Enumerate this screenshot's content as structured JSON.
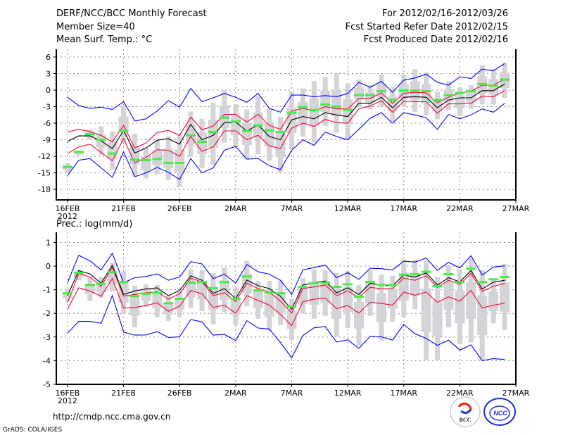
{
  "header": {
    "title": "DERF/NCC/BCC Monthly Forecast",
    "member_size": "Member Size=40",
    "variable": "Mean Surf. Temp.: °C",
    "period": "For 2012/02/16-2012/03/26",
    "started": "Fcst Started Refer Date 2012/02/15",
    "produced": "Fcst Produced Date 2012/02/16"
  },
  "footer": {
    "url": "http://cmdp.ncc.cma.gov.cn",
    "credit": "GrADS: COLA/IGES",
    "logo_bcc": "BCC",
    "logo_ncc": "NCC"
  },
  "colors": {
    "envelope": "#0000ff",
    "spread": "#ff0033",
    "mean": "#000000",
    "obs": "#44ee44",
    "range": "#d3d3d8",
    "grid": "#888888"
  },
  "chart_data": [
    {
      "type": "line",
      "title": "Mean Surf. Temp.: °C",
      "ylabel": "",
      "ylim": [
        -19.9,
        7.4
      ],
      "yticks": [
        6,
        3,
        0,
        -3,
        -6,
        -9,
        -12,
        -15,
        -18
      ],
      "ytick_labels": [
        "6",
        "3",
        "0",
        "-3",
        "-6",
        "-9",
        "-12",
        "-15",
        "-18"
      ],
      "xticks": [
        0,
        5,
        10,
        15,
        20,
        25,
        30,
        35,
        40
      ],
      "xtick_labels": [
        "16FEB",
        "21FEB",
        "26FEB",
        "2MAR",
        "7MAR",
        "12MAR",
        "17MAR",
        "22MAR",
        "27MAR"
      ],
      "xtick_sublabel": "2012",
      "xlim": [
        -1,
        40
      ],
      "grid": true,
      "series": [
        {
          "name": "max",
          "role": "envelope",
          "values": [
            -1.3,
            -2.8,
            -3.3,
            -3.1,
            -3.5,
            -2.1,
            -5.6,
            -5.2,
            -3.8,
            -1.9,
            -3.1,
            0.3,
            -2.1,
            -1.4,
            -0.6,
            -1.3,
            -2.2,
            -0.6,
            -3.3,
            -4.0,
            -0.9,
            -0.9,
            -1.2,
            -1.0,
            -1.2,
            -0.6,
            1.4,
            0.5,
            1.6,
            -0.4,
            1.8,
            2.2,
            2.9,
            1.4,
            0.9,
            2.4,
            2.1,
            3.8,
            3.5,
            4.8
          ]
        },
        {
          "name": "upper",
          "role": "spread",
          "values": [
            -7.6,
            -7.1,
            -7.5,
            -8.2,
            -9.4,
            -6.4,
            -10.5,
            -9.6,
            -7.7,
            -7.3,
            -8.2,
            -4.9,
            -7.2,
            -6.5,
            -4.4,
            -4.4,
            -5.8,
            -4.4,
            -6.4,
            -7.1,
            -3.8,
            -3.3,
            -3.8,
            -3.0,
            -3.4,
            -3.4,
            -1.5,
            -1.5,
            -0.5,
            -2.4,
            -0.6,
            -0.4,
            -0.5,
            -2.3,
            -1.3,
            -0.5,
            -0.2,
            0.9,
            0.9,
            2.0
          ]
        },
        {
          "name": "mean",
          "role": "mean",
          "values": [
            -9.3,
            -8.3,
            -8.3,
            -9.2,
            -10.6,
            -7.3,
            -11.4,
            -10.5,
            -9.1,
            -8.8,
            -9.8,
            -6.2,
            -9.0,
            -8.2,
            -5.9,
            -5.8,
            -7.4,
            -6.3,
            -8.4,
            -9.0,
            -5.4,
            -4.8,
            -5.2,
            -4.1,
            -4.5,
            -4.8,
            -2.4,
            -2.4,
            -1.3,
            -3.2,
            -1.3,
            -1.2,
            -1.3,
            -3.2,
            -1.8,
            -1.4,
            -1.4,
            -0.1,
            -0.1,
            1.1
          ]
        },
        {
          "name": "lower",
          "role": "spread",
          "values": [
            -11.5,
            -10.3,
            -9.8,
            -11.3,
            -12.8,
            -8.8,
            -13.2,
            -12.2,
            -10.8,
            -10.9,
            -12.0,
            -8.4,
            -11.1,
            -10.3,
            -7.4,
            -7.4,
            -9.0,
            -8.2,
            -10.1,
            -10.6,
            -6.9,
            -6.0,
            -6.6,
            -5.3,
            -5.9,
            -6.0,
            -3.4,
            -2.9,
            -1.9,
            -4.0,
            -2.0,
            -2.1,
            -2.1,
            -4.2,
            -2.5,
            -2.5,
            -2.4,
            -1.1,
            -1.2,
            -0.1
          ]
        },
        {
          "name": "min",
          "role": "envelope",
          "values": [
            -15.5,
            -12.7,
            -12.4,
            -14.1,
            -15.8,
            -11.2,
            -15.7,
            -15.0,
            -14.0,
            -14.9,
            -16.2,
            -12.4,
            -15.0,
            -14.1,
            -10.9,
            -10.2,
            -12.5,
            -12.4,
            -13.7,
            -14.4,
            -10.9,
            -9.0,
            -10.0,
            -7.6,
            -8.4,
            -9.0,
            -7.1,
            -5.1,
            -4.1,
            -6.0,
            -4.1,
            -4.5,
            -5.0,
            -7.1,
            -4.4,
            -5.2,
            -4.5,
            -3.4,
            -4.0,
            -2.4
          ]
        },
        {
          "name": "reference",
          "role": "obs",
          "values": [
            -13.9,
            -11.2,
            -8.0,
            -9.0,
            -11.5,
            -7.4,
            -12.6,
            -12.7,
            -12.5,
            -13.2,
            -13.2,
            -8.2,
            -9.4,
            -7.6,
            -5.0,
            -5.7,
            -7.4,
            -6.4,
            -7.3,
            -7.6,
            -4.1,
            -3.1,
            -3.6,
            -2.6,
            -3.0,
            -3.6,
            -0.9,
            -0.9,
            -0.2,
            -1.8,
            -0.1,
            -0.1,
            -0.2,
            -1.8,
            -0.9,
            -0.5,
            -0.2,
            1.1,
            0.8,
            1.9
          ]
        }
      ],
      "range_high": [
        -13.2,
        -11.2,
        -7.1,
        -6.6,
        -7.5,
        -2.9,
        -7.9,
        -10.5,
        -9.2,
        -8.4,
        -8.1,
        -3.9,
        -5.2,
        -2.3,
        -0.1,
        -2.6,
        -3.5,
        -1.1,
        -3.4,
        -4.9,
        -0.3,
        0.3,
        1.6,
        2.4,
        3.0,
        1.2,
        1.9,
        0.9,
        2.8,
        0.6,
        2.8,
        3.8,
        3.2,
        -0.3,
        1.6,
        0.5,
        0.9,
        4.5,
        3.8,
        5.0
      ],
      "range_low": [
        -15.0,
        -11.8,
        -9.0,
        -11.8,
        -14.4,
        -9.6,
        -15.6,
        -16.0,
        -15.3,
        -16.3,
        -17.6,
        -12.1,
        -14.1,
        -13.6,
        -9.5,
        -10.3,
        -12.5,
        -11.6,
        -12.8,
        -15.0,
        -10.7,
        -8.4,
        -9.5,
        -6.5,
        -7.7,
        -9.0,
        -3.1,
        -3.5,
        -2.9,
        -5.6,
        -3.1,
        -4.0,
        -4.6,
        -5.3,
        -3.6,
        -4.7,
        -3.4,
        -2.6,
        -2.6,
        -1.4
      ]
    },
    {
      "type": "line",
      "title": "Prec.: log(mm/d)",
      "ylabel": "",
      "ylim": [
        -5,
        1.43
      ],
      "yticks": [
        1,
        0,
        -1,
        -2,
        -3,
        -4,
        -5
      ],
      "ytick_labels": [
        "1",
        "0",
        "-1",
        "-2",
        "-3",
        "-4",
        "-5"
      ],
      "xticks": [
        0,
        5,
        10,
        15,
        20,
        25,
        30,
        35,
        40
      ],
      "xtick_labels": [
        "16FEB",
        "21FEB",
        "26FEB",
        "2MAR",
        "7MAR",
        "12MAR",
        "17MAR",
        "22MAR",
        "27MAR"
      ],
      "xtick_sublabel": "2012",
      "xlim": [
        -1,
        40
      ],
      "grid": true,
      "series": [
        {
          "name": "max",
          "role": "envelope",
          "values": [
            -0.7,
            0.46,
            0.22,
            -0.16,
            0.54,
            -0.7,
            -0.49,
            -0.44,
            -0.33,
            -0.6,
            -0.46,
            0.19,
            0.09,
            -0.53,
            -0.34,
            -0.72,
            0.07,
            -0.24,
            -0.34,
            -0.6,
            -1.2,
            -0.16,
            -0.06,
            0.04,
            -0.49,
            -0.28,
            -0.56,
            -0.09,
            -0.11,
            -0.16,
            0.21,
            0.17,
            0.34,
            -0.18,
            0.16,
            -0.08,
            0.44,
            -0.38,
            -0.04,
            0.01
          ]
        },
        {
          "name": "upper",
          "role": "spread",
          "values": [
            -1.55,
            -0.31,
            -0.46,
            -0.85,
            -0.06,
            -1.27,
            -1.2,
            -1.13,
            -1.08,
            -1.4,
            -1.17,
            -0.51,
            -0.67,
            -1.25,
            -1.12,
            -1.5,
            -0.72,
            -0.95,
            -1.1,
            -1.48,
            -1.99,
            -0.95,
            -0.88,
            -0.8,
            -1.25,
            -1.05,
            -1.33,
            -0.9,
            -0.95,
            -0.95,
            -0.51,
            -0.6,
            -0.41,
            -0.9,
            -0.6,
            -0.77,
            -0.31,
            -1.07,
            -0.85,
            -0.73
          ]
        },
        {
          "name": "mean",
          "role": "mean",
          "values": [
            -1.25,
            -0.19,
            -0.33,
            -0.73,
            0.04,
            -1.2,
            -1.05,
            -0.97,
            -0.92,
            -1.25,
            -1.03,
            -0.41,
            -0.6,
            -1.15,
            -0.95,
            -1.37,
            -0.59,
            -0.83,
            -0.95,
            -1.28,
            -1.83,
            -0.8,
            -0.7,
            -0.63,
            -1.13,
            -0.92,
            -1.2,
            -0.73,
            -0.8,
            -0.83,
            -0.38,
            -0.46,
            -0.29,
            -0.8,
            -0.49,
            -0.67,
            -0.19,
            -0.97,
            -0.68,
            -0.6
          ]
        },
        {
          "name": "lower",
          "role": "spread",
          "values": [
            -1.83,
            -0.92,
            -1.05,
            -1.28,
            -0.53,
            -1.77,
            -1.75,
            -1.67,
            -1.55,
            -1.91,
            -1.7,
            -1.03,
            -1.17,
            -1.75,
            -1.65,
            -1.99,
            -1.25,
            -1.45,
            -1.65,
            -2.04,
            -2.52,
            -1.5,
            -1.4,
            -1.35,
            -1.8,
            -1.67,
            -1.99,
            -1.53,
            -1.58,
            -1.65,
            -1.1,
            -1.23,
            -1.1,
            -1.53,
            -1.3,
            -1.48,
            -1.03,
            -1.77,
            -1.65,
            -1.57
          ]
        },
        {
          "name": "min",
          "role": "envelope",
          "values": [
            -2.84,
            -2.34,
            -2.34,
            -2.42,
            -1.25,
            -2.79,
            -2.92,
            -2.91,
            -2.77,
            -3.02,
            -2.99,
            -2.26,
            -2.36,
            -2.92,
            -2.89,
            -3.15,
            -2.31,
            -2.62,
            -2.66,
            -3.23,
            -3.88,
            -2.94,
            -2.61,
            -2.56,
            -3.21,
            -3.12,
            -3.48,
            -2.97,
            -2.99,
            -3.13,
            -2.47,
            -2.86,
            -3.06,
            -3.35,
            -3.13,
            -3.55,
            -3.33,
            -4.0,
            -3.91,
            -3.95
          ]
        },
        {
          "name": "reference",
          "role": "obs",
          "values": [
            -1.15,
            -0.28,
            -0.8,
            -0.75,
            -0.26,
            -0.68,
            -1.27,
            -1.17,
            -1.13,
            -1.57,
            -1.38,
            -0.7,
            -0.67,
            -0.93,
            -0.68,
            -1.38,
            -0.44,
            -1.03,
            -1.12,
            -1.15,
            -1.72,
            -0.88,
            -0.72,
            -0.7,
            -0.88,
            -0.77,
            -1.3,
            -0.67,
            -0.8,
            -0.8,
            -0.36,
            -0.34,
            -0.24,
            -0.85,
            -0.34,
            -0.68,
            -0.11,
            -0.68,
            -0.56,
            -0.46
          ]
        }
      ],
      "range_high": [
        -0.98,
        -0.16,
        -0.46,
        -0.46,
        0.14,
        -0.24,
        -0.83,
        -0.77,
        -0.8,
        -1.28,
        -1.05,
        -0.14,
        -0.16,
        -0.29,
        -0.06,
        -0.93,
        0.22,
        -0.62,
        -0.62,
        -0.6,
        -1.38,
        -0.51,
        -0.14,
        -0.18,
        -0.29,
        -0.21,
        -0.8,
        -0.18,
        -0.36,
        -0.41,
        0.26,
        0.26,
        0.22,
        -0.46,
        0.04,
        -0.14,
        0.34,
        -0.16,
        -0.56,
        0.09
      ],
      "range_low": [
        -1.5,
        -0.6,
        -1.47,
        -1.33,
        -1.07,
        -2.04,
        -2.59,
        -1.73,
        -2.16,
        -2.32,
        -2.14,
        -1.78,
        -1.9,
        -2.46,
        -1.96,
        -2.49,
        -1.7,
        -2.22,
        -2.74,
        -2.49,
        -3.15,
        -2.02,
        -2.22,
        -2.11,
        -2.97,
        -2.62,
        -3.36,
        -2.11,
        -3.15,
        -2.34,
        -2.14,
        -1.82,
        -3.96,
        -3.96,
        -2.59,
        -3.31,
        -3.23,
        -3.98,
        -2.42,
        -2.71
      ]
    }
  ]
}
